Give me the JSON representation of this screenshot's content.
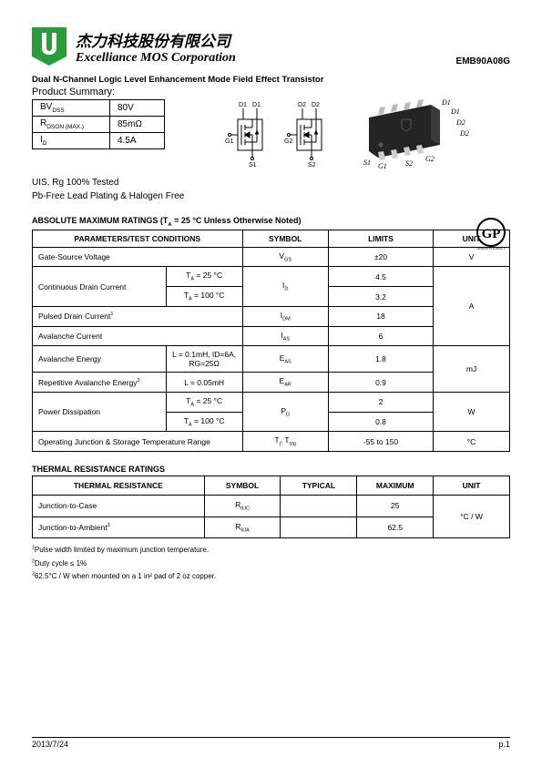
{
  "header": {
    "company_cn": "杰力科技股份有限公司",
    "company_en": "Excelliance MOS Corporation",
    "part_number": "EMB90A08G"
  },
  "product": {
    "title": "Dual N-Channel Logic Level Enhancement Mode Field Effect Transistor",
    "summary_label": "Product Summary:",
    "summary_rows": [
      {
        "param": "BV",
        "sub": "DSS",
        "value": "80V"
      },
      {
        "param": "R",
        "sub": "DSON (MAX.)",
        "value": "85mΩ"
      },
      {
        "param": "I",
        "sub": "D",
        "value": "4.5A"
      }
    ],
    "note_1": "UIS, Rg 100% Tested",
    "note_2": "Pb-Free Lead Plating & Halogen Free"
  },
  "schematic_labels": [
    "D1",
    "D1",
    "D2",
    "D2",
    "G1",
    "S1",
    "G2",
    "S2"
  ],
  "package_labels": [
    "D1",
    "D1",
    "D2",
    "D2",
    "S1",
    "G1",
    "S2",
    "G2"
  ],
  "gp_text": "GP",
  "gp_sub": "GREEN PRODUCT",
  "abs_max": {
    "title": "ABSOLUTE MAXIMUM RATINGS (T",
    "title_sub": "A",
    "title_rest": " = 25 °C Unless Otherwise Noted)",
    "headers": [
      "PARAMETERS/TEST CONDITIONS",
      "SYMBOL",
      "LIMITS",
      "UNIT"
    ],
    "col_widths": [
      "44%",
      "18%",
      "22%",
      "16%"
    ],
    "rows": [
      {
        "param": "Gate-Source Voltage",
        "cond": null,
        "symbol": "V",
        "symbol_sub": "GS",
        "limit": "±20",
        "unit": "V",
        "rowspan_unit": 1
      },
      {
        "param": "Continuous Drain Current",
        "cond": "T<sub>A</sub> = 25 °C",
        "symbol": "I",
        "symbol_sub": "D",
        "limit": "4.5",
        "unit": "A",
        "rowspan_param": 2,
        "rowspan_symbol": 2,
        "rowspan_unit": 4
      },
      {
        "cond": "T<sub>A</sub> = 100 °C",
        "limit": "3.2"
      },
      {
        "param": "Pulsed Drain Current",
        "sup": "1",
        "cond": null,
        "symbol": "I",
        "symbol_sub": "DM",
        "limit": "18"
      },
      {
        "param": "Avalanche Current",
        "cond": null,
        "symbol": "I",
        "symbol_sub": "AS",
        "limit": "6"
      },
      {
        "param": "Avalanche Energy",
        "cond": "L = 0.1mH, ID=6A, RG=25Ω",
        "symbol": "E",
        "symbol_sub": "AS",
        "limit": "1.8",
        "unit": "mJ",
        "rowspan_unit": 2
      },
      {
        "param": "Repetitive Avalanche Energy",
        "sup": "2",
        "cond": "L = 0.05mH",
        "symbol": "E",
        "symbol_sub": "AR",
        "limit": "0.9"
      },
      {
        "param": "Power Dissipation",
        "cond": "T<sub>A</sub> = 25 °C",
        "symbol": "P",
        "symbol_sub": "D",
        "limit": "2",
        "unit": "W",
        "rowspan_param": 2,
        "rowspan_symbol": 2,
        "rowspan_unit": 2
      },
      {
        "cond": "T<sub>A</sub> = 100 °C",
        "limit": "0.8"
      },
      {
        "param": "Operating Junction & Storage Temperature Range",
        "cond": null,
        "full_param": true,
        "symbol_html": "T<sub>j</sub>, T<sub>stg</sub>",
        "limit": "-55 to 150",
        "unit": "°C",
        "rowspan_unit": 1
      }
    ]
  },
  "thermal": {
    "title": "THERMAL RESISTANCE RATINGS",
    "headers": [
      "THERMAL RESISTANCE",
      "SYMBOL",
      "TYPICAL",
      "MAXIMUM",
      "UNIT"
    ],
    "col_widths": [
      "36%",
      "16%",
      "16%",
      "16%",
      "16%"
    ],
    "rows": [
      {
        "param": "Junction-to-Case",
        "symbol": "R",
        "symbol_sub": "θJC",
        "typical": "",
        "maximum": "25",
        "unit": "°C / W",
        "rowspan_unit": 2
      },
      {
        "param": "Junction-to-Ambient",
        "sup": "3",
        "symbol": "R",
        "symbol_sub": "θJA",
        "typical": "",
        "maximum": "62.5"
      }
    ]
  },
  "footnotes": [
    {
      "n": "1",
      "text": "Pulse width limited by maximum junction temperature."
    },
    {
      "n": "2",
      "text": "Duty cycle ≤ 1%"
    },
    {
      "n": "3",
      "text": "62.5°C / W when mounted on a 1 in² pad of 2 oz copper."
    }
  ],
  "footer": {
    "date": "2013/7/24",
    "page": "p.1"
  },
  "colors": {
    "logo_green": "#2a9c3a",
    "logo_white": "#ffffff",
    "text": "#000000",
    "package_body": "#242424"
  }
}
